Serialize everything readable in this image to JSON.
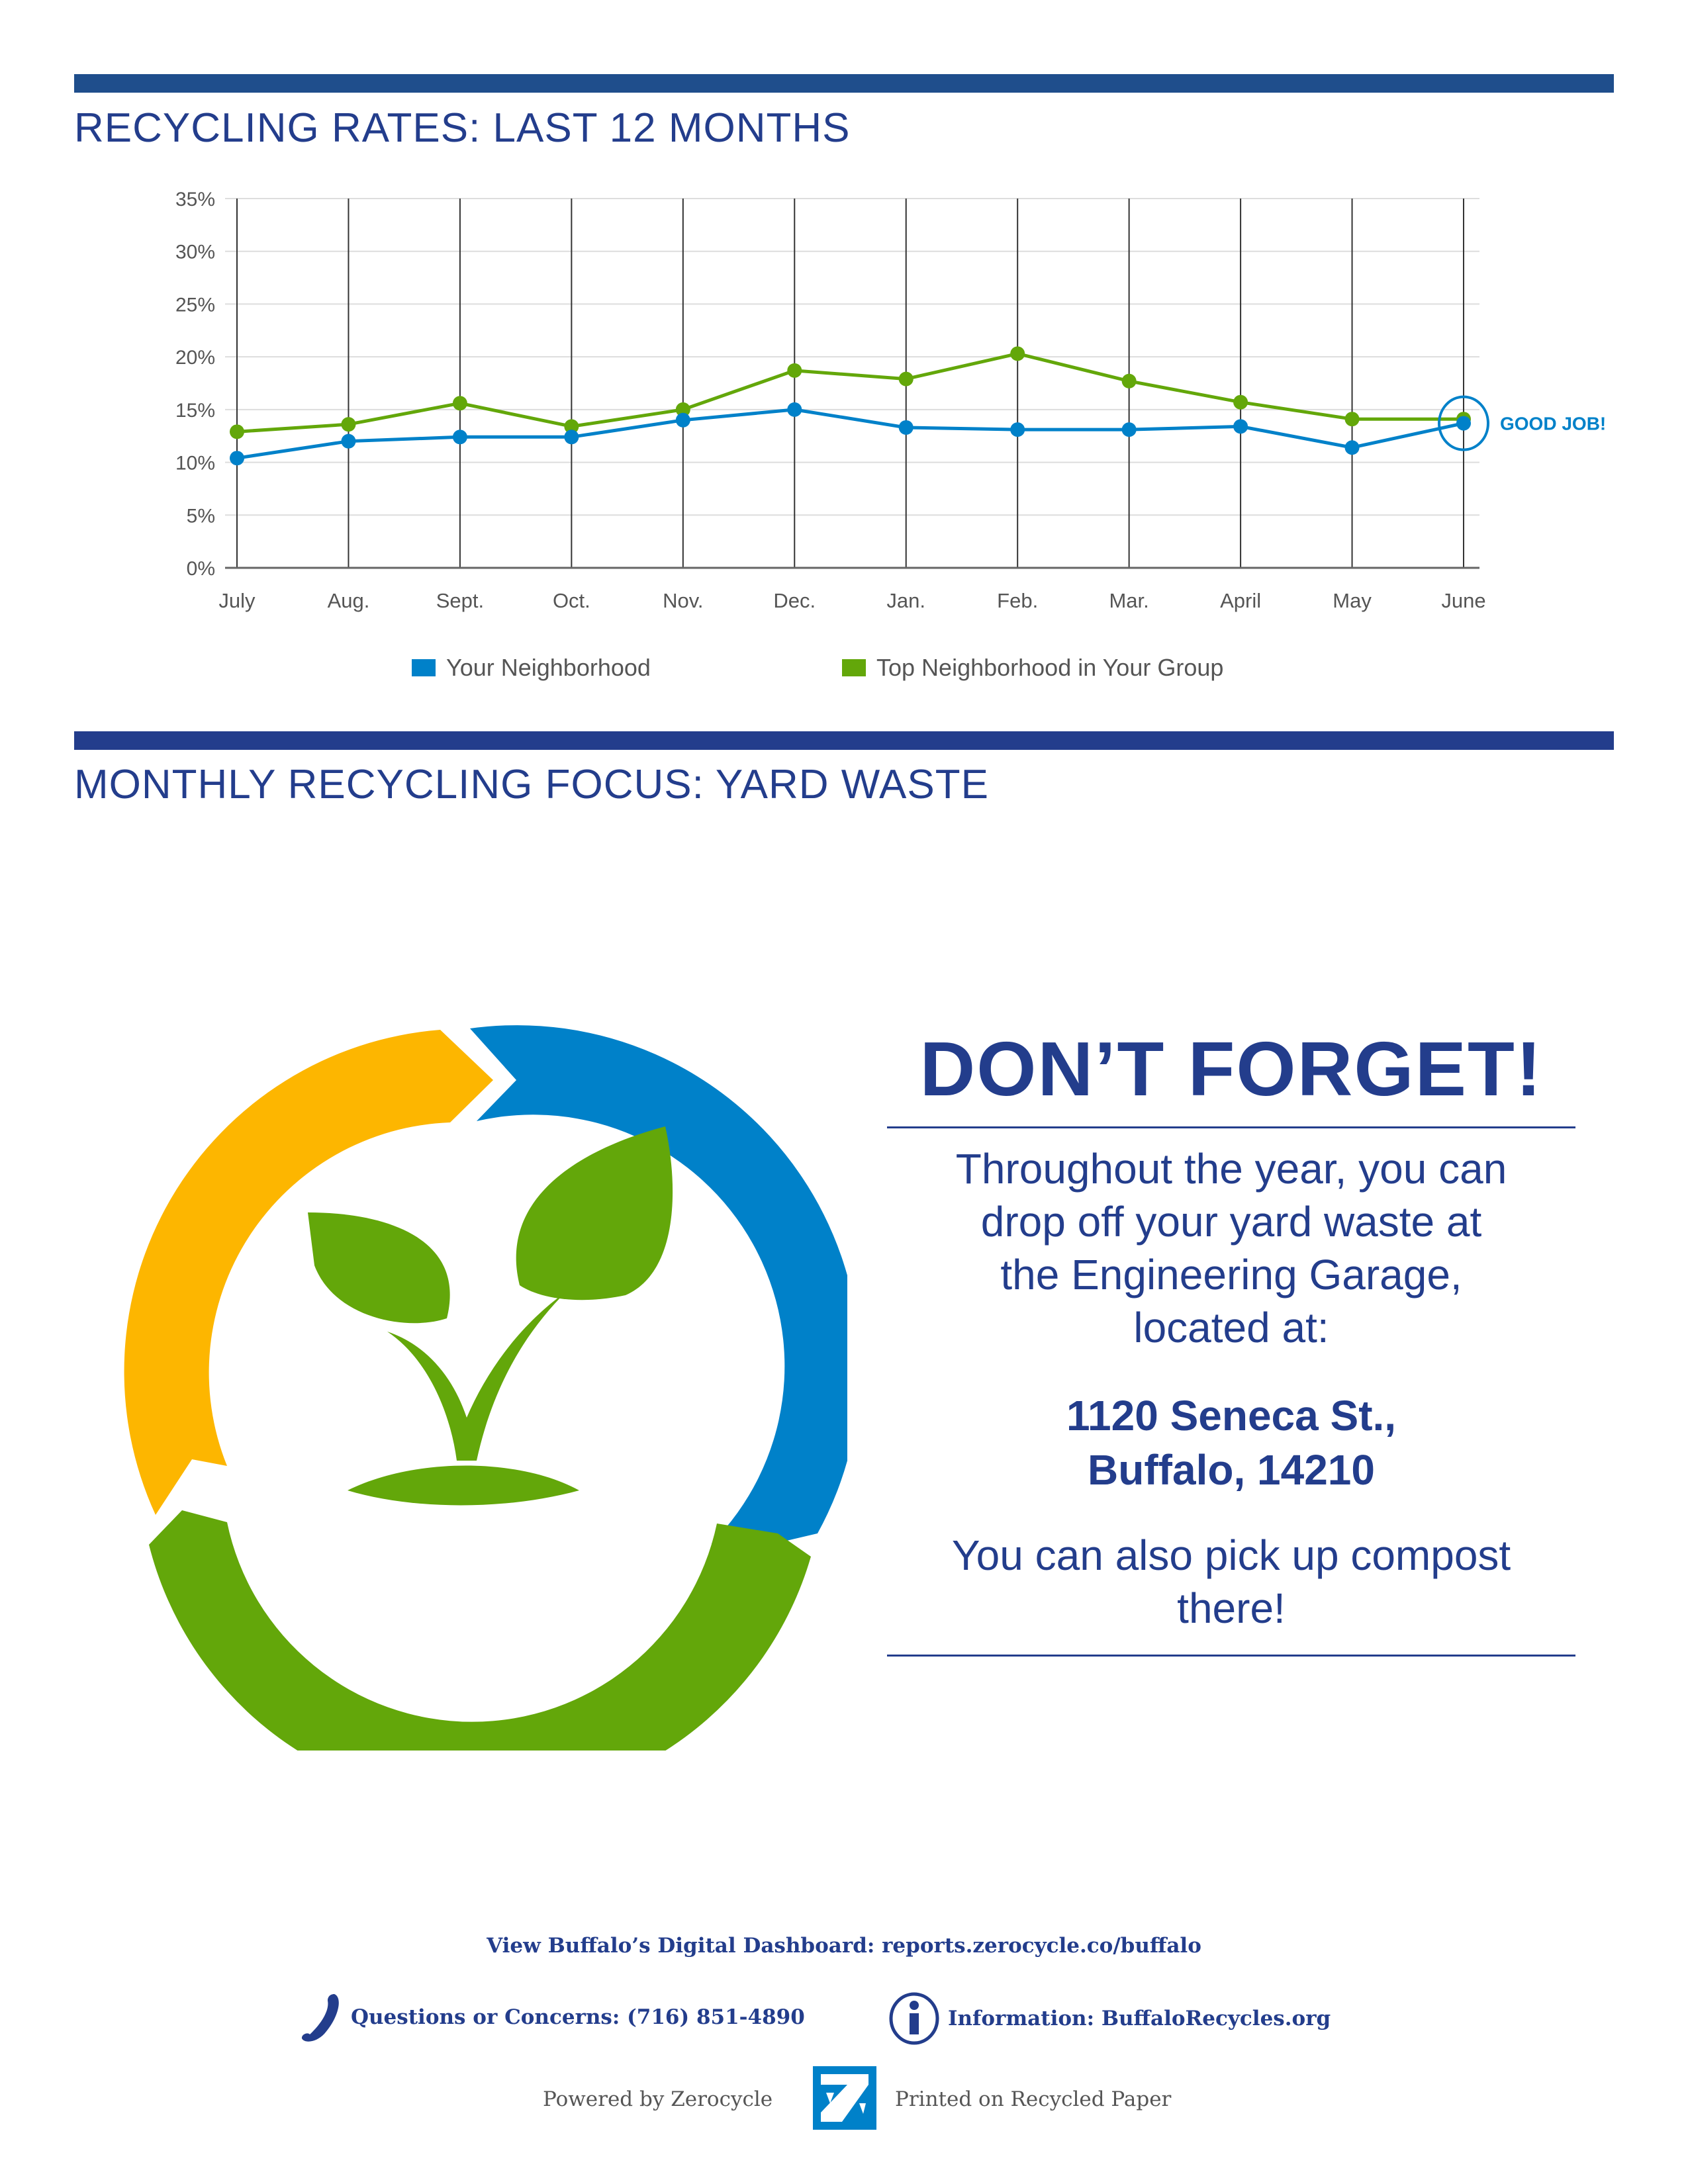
{
  "colors": {
    "navy": "#233d8c",
    "header_bar": "#1f4e8c",
    "blue": "#0081c9",
    "green": "#63a70a",
    "orange": "#fdb600"
  },
  "section1": {
    "title": "RECYCLING RATES: LAST 12 MONTHS"
  },
  "chart_data": {
    "type": "line",
    "title": "",
    "categories": [
      "July",
      "Aug.",
      "Sept.",
      "Oct.",
      "Nov.",
      "Dec.",
      "Jan.",
      "Feb.",
      "Mar.",
      "April",
      "May",
      "June"
    ],
    "y_ticks": [
      "0%",
      "5%",
      "10%",
      "15%",
      "20%",
      "25%",
      "30%",
      "35%"
    ],
    "ylim": [
      0,
      35
    ],
    "grid": true,
    "legend_placement": "bottom",
    "series": [
      {
        "name": "Your Neighborhood",
        "color": "#0081c9",
        "values": [
          10.4,
          12.0,
          12.4,
          12.4,
          14.0,
          15.0,
          13.3,
          13.1,
          13.1,
          13.4,
          11.4,
          13.7
        ]
      },
      {
        "name": "Top Neighborhood in Your Group",
        "color": "#63a70a",
        "values": [
          12.9,
          13.6,
          15.6,
          13.4,
          15.0,
          18.7,
          17.9,
          20.3,
          17.7,
          15.7,
          14.1,
          14.1
        ]
      }
    ],
    "annotation": {
      "text": "GOOD JOB!",
      "category": "June"
    }
  },
  "section2": {
    "title": "MONTHLY RECYCLING FOCUS: YARD WASTE"
  },
  "callout": {
    "headline": "DON’T FORGET!",
    "body_lines": [
      "Throughout the year, you can",
      "drop off your yard waste at",
      "the Engineering Garage,",
      "located at:"
    ],
    "address_lines": [
      "1120 Seneca St.,",
      "Buffalo, 14210"
    ],
    "extra_lines": [
      "You can also pick up compost",
      "there!"
    ]
  },
  "footer": {
    "dashboard": "View Buffalo’s Digital Dashboard: reports.zerocycle.co/buffalo",
    "phone": "Questions or Concerns: (716) 851-4890",
    "info": "Information: BuffaloRecycles.org",
    "powered": "Powered by Zerocycle",
    "printed": "Printed on Recycled Paper",
    "icons": [
      "phone-icon",
      "info-icon",
      "zerocycle-logo"
    ]
  }
}
